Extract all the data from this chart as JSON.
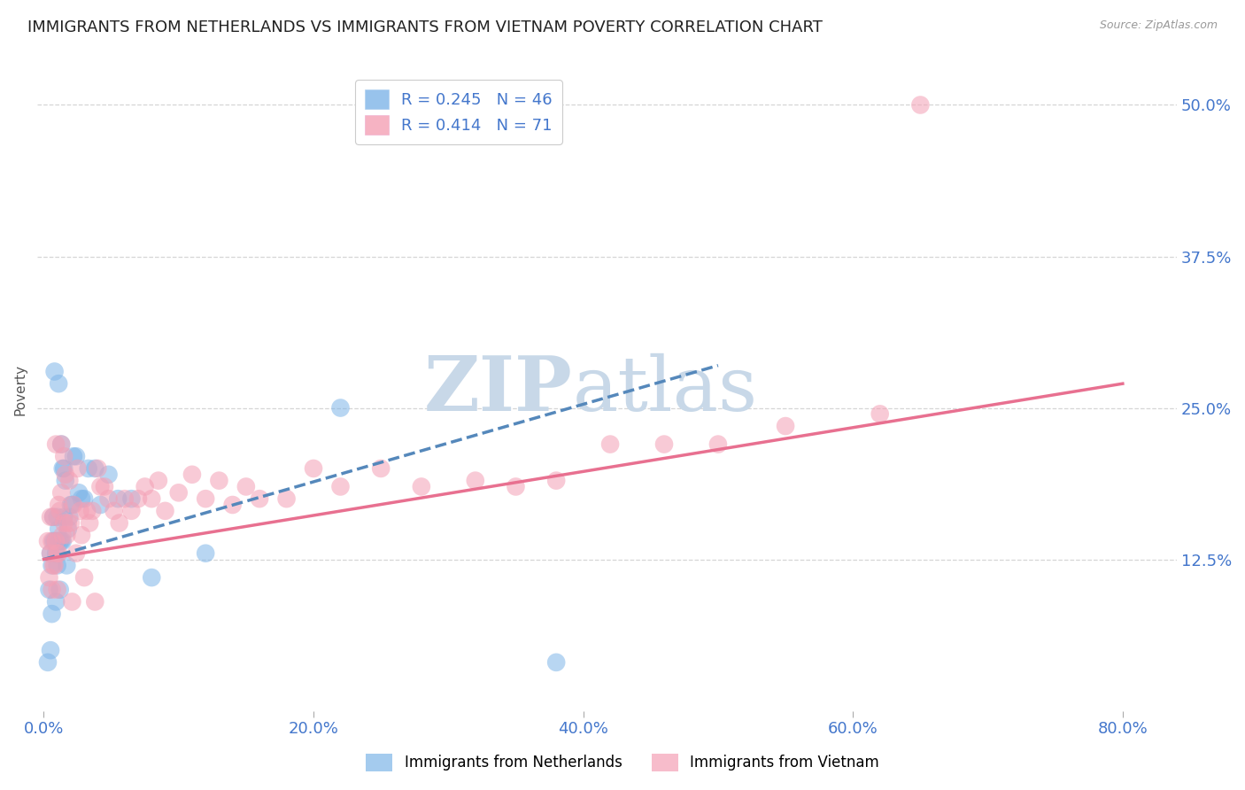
{
  "title": "IMMIGRANTS FROM NETHERLANDS VS IMMIGRANTS FROM VIETNAM POVERTY CORRELATION CHART",
  "source": "Source: ZipAtlas.com",
  "xlabel_labels": [
    "0.0%",
    "20.0%",
    "40.0%",
    "60.0%",
    "80.0%"
  ],
  "xlabel_ticks": [
    0.0,
    0.2,
    0.4,
    0.6,
    0.8
  ],
  "ylabel_labels": [
    "12.5%",
    "25.0%",
    "37.5%",
    "50.0%"
  ],
  "ylabel_ticks": [
    0.125,
    0.25,
    0.375,
    0.5
  ],
  "ylabel": "Poverty",
  "ylim": [
    0.0,
    0.53
  ],
  "xlim": [
    -0.005,
    0.84
  ],
  "legend_r_blue": "R = 0.245",
  "legend_n_blue": "N = 46",
  "legend_r_pink": "R = 0.414",
  "legend_n_pink": "N = 71",
  "legend_label_blue": "Immigrants from Netherlands",
  "legend_label_pink": "Immigrants from Vietnam",
  "blue_color": "#7eb5e8",
  "pink_color": "#f4a0b5",
  "trendline_blue_color": "#5588bb",
  "trendline_pink_color": "#e87090",
  "watermark_zip": "ZIP",
  "watermark_atlas": "atlas",
  "watermark_color": "#c8d8e8",
  "title_fontsize": 13,
  "axis_label_fontsize": 11,
  "tick_label_color": "#4477cc",
  "tick_label_fontsize": 13,
  "blue_scatter_x": [
    0.003,
    0.004,
    0.005,
    0.005,
    0.006,
    0.006,
    0.007,
    0.007,
    0.008,
    0.008,
    0.009,
    0.009,
    0.01,
    0.01,
    0.01,
    0.011,
    0.011,
    0.012,
    0.012,
    0.013,
    0.013,
    0.014,
    0.014,
    0.015,
    0.015,
    0.016,
    0.017,
    0.018,
    0.019,
    0.02,
    0.021,
    0.022,
    0.024,
    0.026,
    0.028,
    0.03,
    0.033,
    0.038,
    0.042,
    0.048,
    0.055,
    0.065,
    0.08,
    0.12,
    0.22,
    0.38
  ],
  "blue_scatter_y": [
    0.04,
    0.1,
    0.13,
    0.05,
    0.12,
    0.08,
    0.16,
    0.14,
    0.14,
    0.28,
    0.13,
    0.09,
    0.14,
    0.12,
    0.16,
    0.15,
    0.27,
    0.14,
    0.1,
    0.22,
    0.14,
    0.14,
    0.2,
    0.2,
    0.16,
    0.19,
    0.12,
    0.15,
    0.16,
    0.17,
    0.17,
    0.21,
    0.21,
    0.18,
    0.175,
    0.175,
    0.2,
    0.2,
    0.17,
    0.195,
    0.175,
    0.175,
    0.11,
    0.13,
    0.25,
    0.04
  ],
  "pink_scatter_x": [
    0.003,
    0.004,
    0.005,
    0.005,
    0.006,
    0.006,
    0.007,
    0.007,
    0.008,
    0.009,
    0.009,
    0.01,
    0.01,
    0.011,
    0.011,
    0.012,
    0.013,
    0.013,
    0.014,
    0.015,
    0.015,
    0.016,
    0.017,
    0.018,
    0.019,
    0.02,
    0.021,
    0.022,
    0.024,
    0.025,
    0.027,
    0.028,
    0.03,
    0.032,
    0.034,
    0.036,
    0.038,
    0.04,
    0.042,
    0.045,
    0.048,
    0.052,
    0.056,
    0.06,
    0.065,
    0.07,
    0.075,
    0.08,
    0.085,
    0.09,
    0.1,
    0.11,
    0.12,
    0.13,
    0.14,
    0.15,
    0.16,
    0.18,
    0.2,
    0.22,
    0.25,
    0.28,
    0.32,
    0.35,
    0.38,
    0.42,
    0.46,
    0.5,
    0.55,
    0.62,
    0.65
  ],
  "pink_scatter_y": [
    0.14,
    0.11,
    0.13,
    0.16,
    0.14,
    0.1,
    0.16,
    0.12,
    0.12,
    0.22,
    0.14,
    0.13,
    0.1,
    0.17,
    0.13,
    0.165,
    0.22,
    0.18,
    0.145,
    0.21,
    0.155,
    0.195,
    0.145,
    0.155,
    0.19,
    0.155,
    0.09,
    0.17,
    0.13,
    0.2,
    0.165,
    0.145,
    0.11,
    0.165,
    0.155,
    0.165,
    0.09,
    0.2,
    0.185,
    0.185,
    0.175,
    0.165,
    0.155,
    0.175,
    0.165,
    0.175,
    0.185,
    0.175,
    0.19,
    0.165,
    0.18,
    0.195,
    0.175,
    0.19,
    0.17,
    0.185,
    0.175,
    0.175,
    0.2,
    0.185,
    0.2,
    0.185,
    0.19,
    0.185,
    0.19,
    0.22,
    0.22,
    0.22,
    0.235,
    0.245,
    0.5
  ],
  "blue_trendline_x": [
    0.0,
    0.5
  ],
  "blue_trendline_y": [
    0.125,
    0.285
  ],
  "pink_trendline_x": [
    0.0,
    0.8
  ],
  "pink_trendline_y": [
    0.125,
    0.27
  ]
}
